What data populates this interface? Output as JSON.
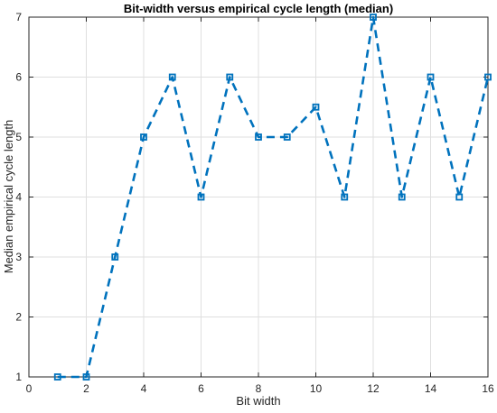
{
  "chart_data": {
    "type": "line",
    "title": "Bit-width versus empirical cycle length (median)",
    "xlabel": "Bit width",
    "ylabel": "Median empirical cycle length",
    "xlim": [
      0,
      16
    ],
    "ylim": [
      1,
      7
    ],
    "xticks": [
      0,
      2,
      4,
      6,
      8,
      10,
      12,
      14,
      16
    ],
    "yticks": [
      1,
      2,
      3,
      4,
      5,
      6,
      7
    ],
    "grid": true,
    "line_style": "dashed",
    "marker": "square",
    "series": [
      {
        "color": "#0072BD",
        "x": [
          1,
          2,
          3,
          4,
          5,
          6,
          7,
          8,
          9,
          10,
          11,
          12,
          13,
          14,
          15,
          16
        ],
        "y": [
          1,
          1,
          3,
          5,
          6,
          4,
          6,
          5,
          5,
          5.5,
          4,
          7,
          4,
          6,
          4,
          6
        ]
      }
    ]
  }
}
